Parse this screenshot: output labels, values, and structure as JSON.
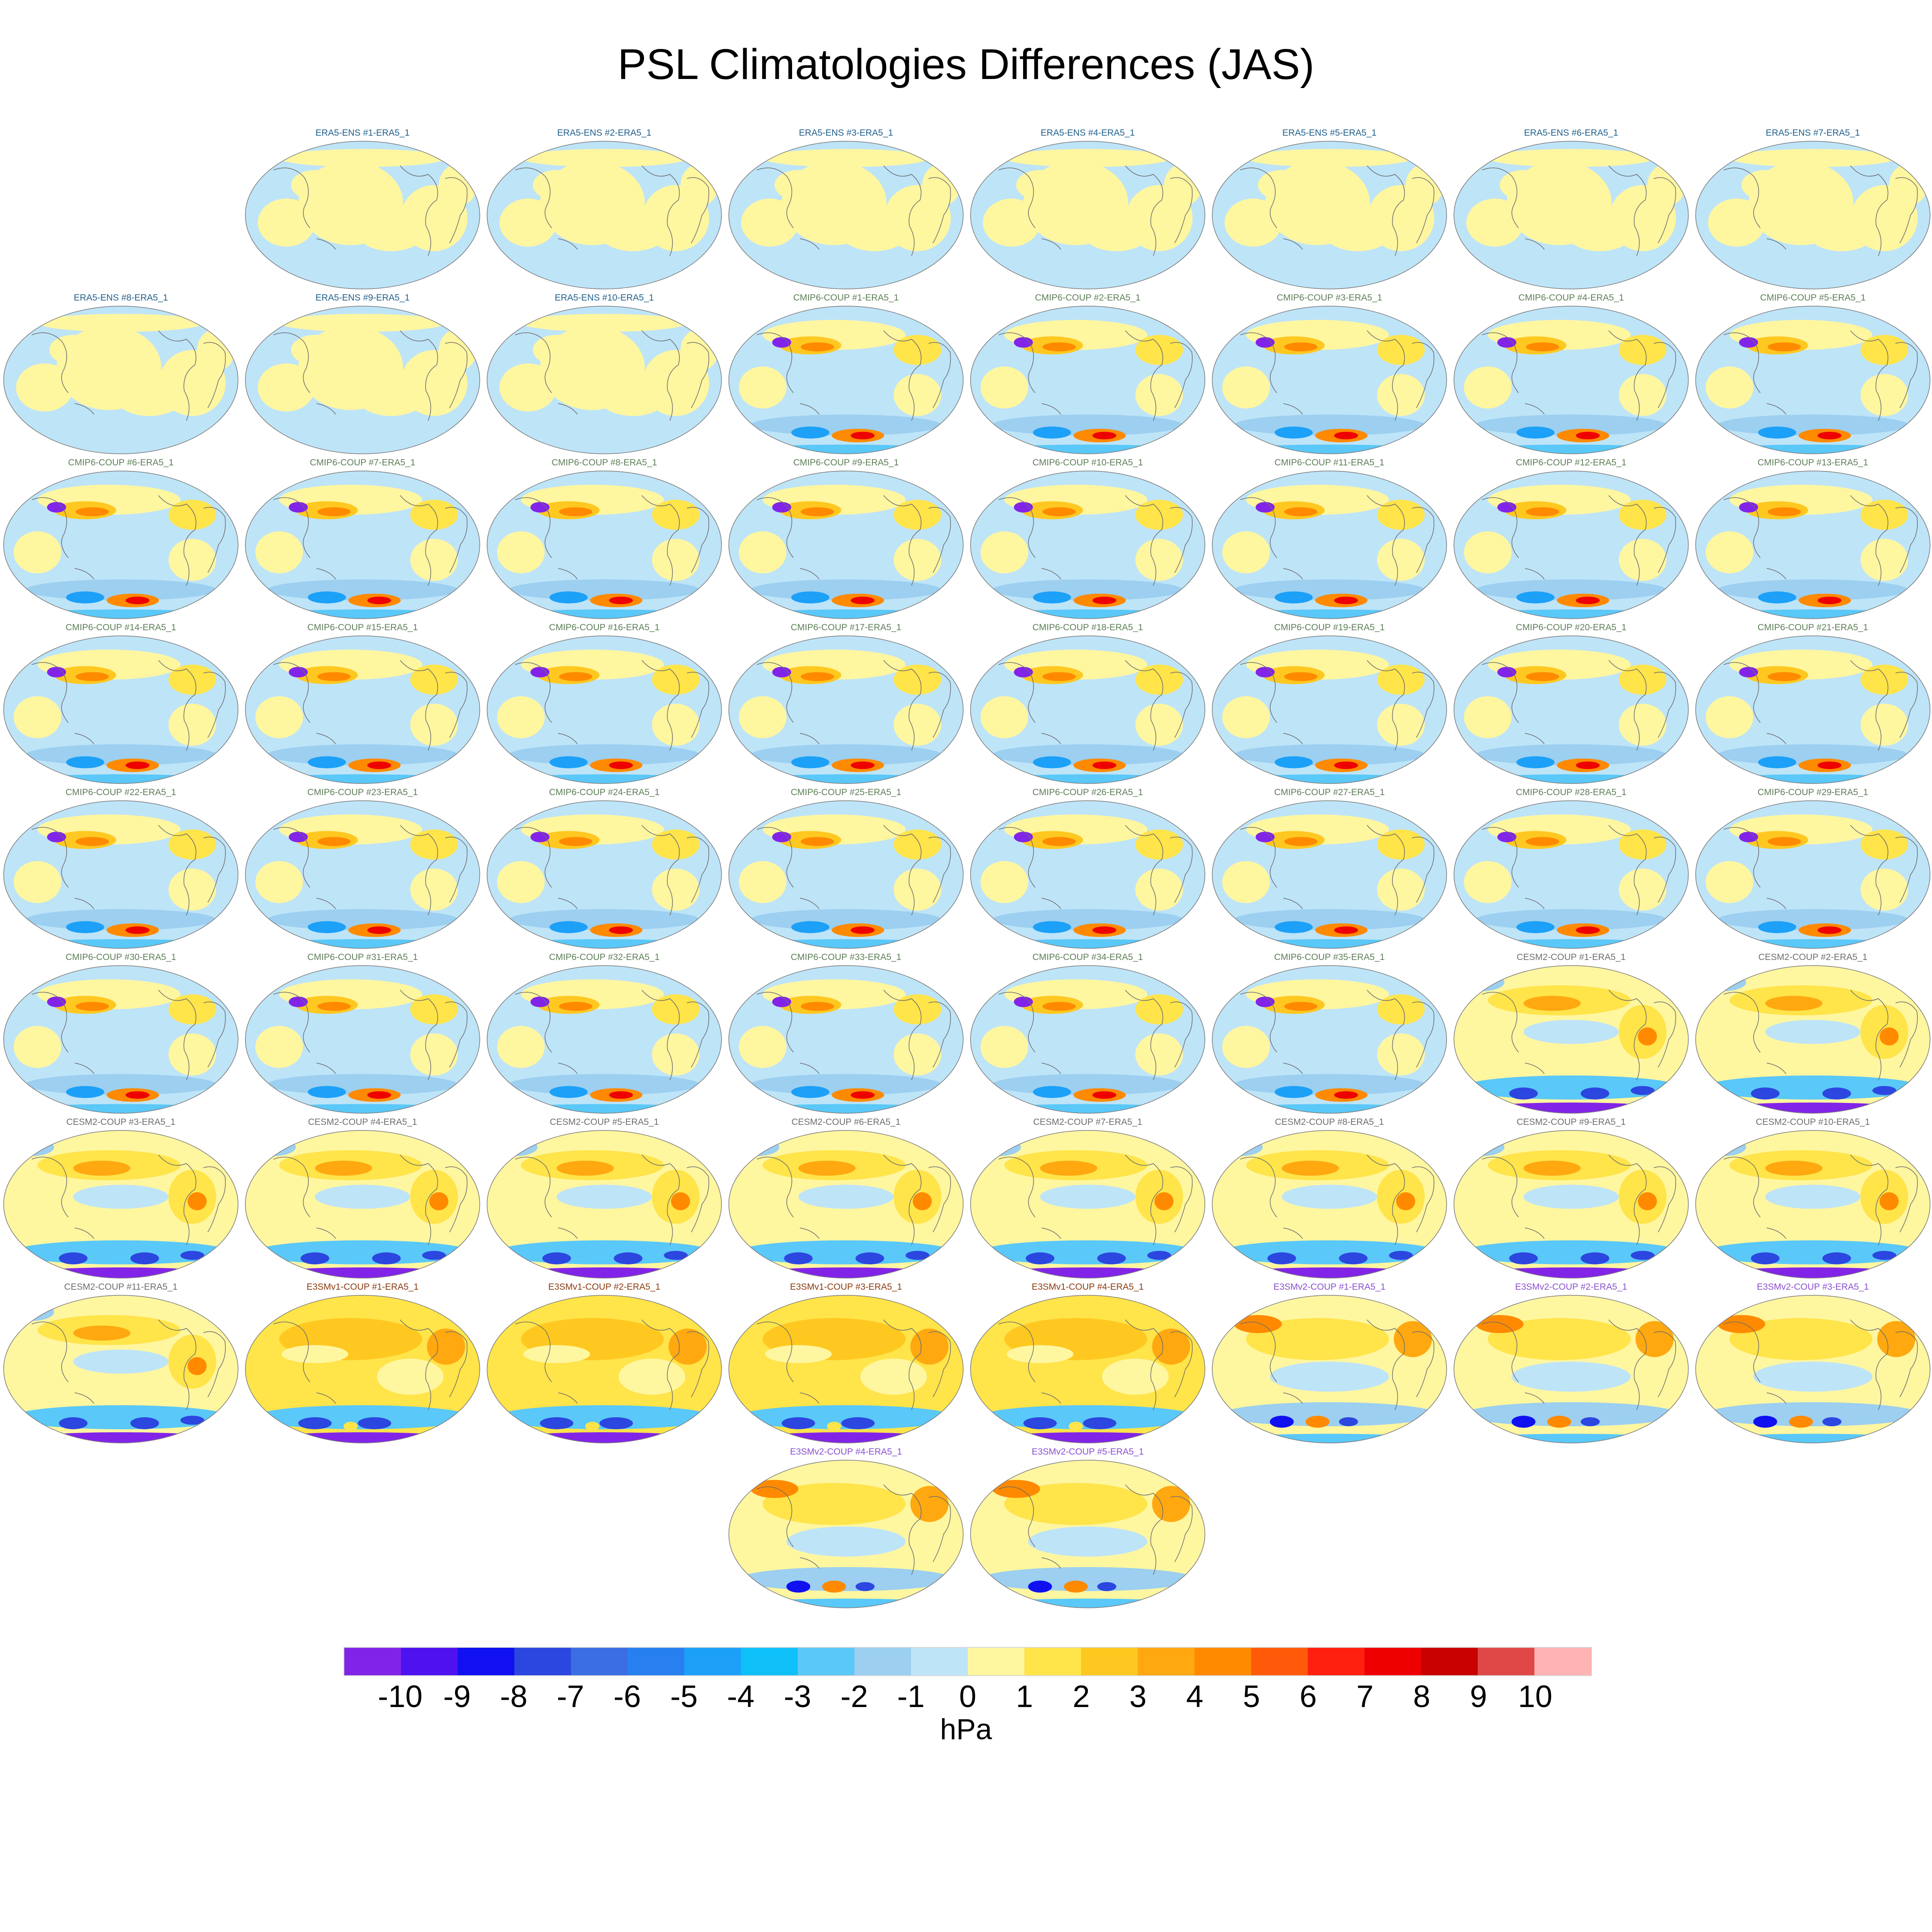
{
  "title": "PSL Climatologies Differences (JAS)",
  "panels": [
    {
      "label": "ERA5-ENS   #1-ERA5_1",
      "group": "ERA5-ENS"
    },
    {
      "label": "ERA5-ENS   #2-ERA5_1",
      "group": "ERA5-ENS"
    },
    {
      "label": "ERA5-ENS   #3-ERA5_1",
      "group": "ERA5-ENS"
    },
    {
      "label": "ERA5-ENS   #4-ERA5_1",
      "group": "ERA5-ENS"
    },
    {
      "label": "ERA5-ENS   #5-ERA5_1",
      "group": "ERA5-ENS"
    },
    {
      "label": "ERA5-ENS   #6-ERA5_1",
      "group": "ERA5-ENS"
    },
    {
      "label": "ERA5-ENS   #7-ERA5_1",
      "group": "ERA5-ENS"
    },
    {
      "label": "ERA5-ENS   #8-ERA5_1",
      "group": "ERA5-ENS"
    },
    {
      "label": "ERA5-ENS   #9-ERA5_1",
      "group": "ERA5-ENS"
    },
    {
      "label": "ERA5-ENS   #10-ERA5_1",
      "group": "ERA5-ENS"
    },
    {
      "label": "CMIP6-COUP  #1-ERA5_1",
      "group": "CMIP6-COUP"
    },
    {
      "label": "CMIP6-COUP  #2-ERA5_1",
      "group": "CMIP6-COUP"
    },
    {
      "label": "CMIP6-COUP  #3-ERA5_1",
      "group": "CMIP6-COUP"
    },
    {
      "label": "CMIP6-COUP  #4-ERA5_1",
      "group": "CMIP6-COUP"
    },
    {
      "label": "CMIP6-COUP  #5-ERA5_1",
      "group": "CMIP6-COUP"
    },
    {
      "label": "CMIP6-COUP  #6-ERA5_1",
      "group": "CMIP6-COUP"
    },
    {
      "label": "CMIP6-COUP  #7-ERA5_1",
      "group": "CMIP6-COUP"
    },
    {
      "label": "CMIP6-COUP  #8-ERA5_1",
      "group": "CMIP6-COUP"
    },
    {
      "label": "CMIP6-COUP  #9-ERA5_1",
      "group": "CMIP6-COUP"
    },
    {
      "label": "CMIP6-COUP  #10-ERA5_1",
      "group": "CMIP6-COUP"
    },
    {
      "label": "CMIP6-COUP  #11-ERA5_1",
      "group": "CMIP6-COUP"
    },
    {
      "label": "CMIP6-COUP  #12-ERA5_1",
      "group": "CMIP6-COUP"
    },
    {
      "label": "CMIP6-COUP  #13-ERA5_1",
      "group": "CMIP6-COUP"
    },
    {
      "label": "CMIP6-COUP  #14-ERA5_1",
      "group": "CMIP6-COUP"
    },
    {
      "label": "CMIP6-COUP  #15-ERA5_1",
      "group": "CMIP6-COUP"
    },
    {
      "label": "CMIP6-COUP  #16-ERA5_1",
      "group": "CMIP6-COUP"
    },
    {
      "label": "CMIP6-COUP  #17-ERA5_1",
      "group": "CMIP6-COUP"
    },
    {
      "label": "CMIP6-COUP  #18-ERA5_1",
      "group": "CMIP6-COUP"
    },
    {
      "label": "CMIP6-COUP  #19-ERA5_1",
      "group": "CMIP6-COUP"
    },
    {
      "label": "CMIP6-COUP  #20-ERA5_1",
      "group": "CMIP6-COUP"
    },
    {
      "label": "CMIP6-COUP  #21-ERA5_1",
      "group": "CMIP6-COUP"
    },
    {
      "label": "CMIP6-COUP  #22-ERA5_1",
      "group": "CMIP6-COUP"
    },
    {
      "label": "CMIP6-COUP  #23-ERA5_1",
      "group": "CMIP6-COUP"
    },
    {
      "label": "CMIP6-COUP  #24-ERA5_1",
      "group": "CMIP6-COUP"
    },
    {
      "label": "CMIP6-COUP  #25-ERA5_1",
      "group": "CMIP6-COUP"
    },
    {
      "label": "CMIP6-COUP  #26-ERA5_1",
      "group": "CMIP6-COUP"
    },
    {
      "label": "CMIP6-COUP  #27-ERA5_1",
      "group": "CMIP6-COUP"
    },
    {
      "label": "CMIP6-COUP  #28-ERA5_1",
      "group": "CMIP6-COUP"
    },
    {
      "label": "CMIP6-COUP  #29-ERA5_1",
      "group": "CMIP6-COUP"
    },
    {
      "label": "CMIP6-COUP  #30-ERA5_1",
      "group": "CMIP6-COUP"
    },
    {
      "label": "CMIP6-COUP  #31-ERA5_1",
      "group": "CMIP6-COUP"
    },
    {
      "label": "CMIP6-COUP  #32-ERA5_1",
      "group": "CMIP6-COUP"
    },
    {
      "label": "CMIP6-COUP  #33-ERA5_1",
      "group": "CMIP6-COUP"
    },
    {
      "label": "CMIP6-COUP  #34-ERA5_1",
      "group": "CMIP6-COUP"
    },
    {
      "label": "CMIP6-COUP  #35-ERA5_1",
      "group": "CMIP6-COUP"
    },
    {
      "label": "CESM2-COUP  #1-ERA5_1",
      "group": "CESM2-COUP"
    },
    {
      "label": "CESM2-COUP  #2-ERA5_1",
      "group": "CESM2-COUP"
    },
    {
      "label": "CESM2-COUP  #3-ERA5_1",
      "group": "CESM2-COUP"
    },
    {
      "label": "CESM2-COUP  #4-ERA5_1",
      "group": "CESM2-COUP"
    },
    {
      "label": "CESM2-COUP  #5-ERA5_1",
      "group": "CESM2-COUP"
    },
    {
      "label": "CESM2-COUP  #6-ERA5_1",
      "group": "CESM2-COUP"
    },
    {
      "label": "CESM2-COUP  #7-ERA5_1",
      "group": "CESM2-COUP"
    },
    {
      "label": "CESM2-COUP  #8-ERA5_1",
      "group": "CESM2-COUP"
    },
    {
      "label": "CESM2-COUP  #9-ERA5_1",
      "group": "CESM2-COUP"
    },
    {
      "label": "CESM2-COUP  #10-ERA5_1",
      "group": "CESM2-COUP"
    },
    {
      "label": "CESM2-COUP  #11-ERA5_1",
      "group": "CESM2-COUP"
    },
    {
      "label": "E3SMv1-COUP  #1-ERA5_1",
      "group": "E3SMv1-COUP"
    },
    {
      "label": "E3SMv1-COUP  #2-ERA5_1",
      "group": "E3SMv1-COUP"
    },
    {
      "label": "E3SMv1-COUP  #3-ERA5_1",
      "group": "E3SMv1-COUP"
    },
    {
      "label": "E3SMv1-COUP  #4-ERA5_1",
      "group": "E3SMv1-COUP"
    },
    {
      "label": "E3SMv2-COUP  #1-ERA5_1",
      "group": "E3SMv2-COUP"
    },
    {
      "label": "E3SMv2-COUP  #2-ERA5_1",
      "group": "E3SMv2-COUP"
    },
    {
      "label": "E3SMv2-COUP  #3-ERA5_1",
      "group": "E3SMv2-COUP"
    },
    {
      "label": "E3SMv2-COUP  #4-ERA5_1",
      "group": "E3SMv2-COUP"
    },
    {
      "label": "E3SMv2-COUP  #5-ERA5_1",
      "group": "E3SMv2-COUP"
    }
  ],
  "group_title_colors": {
    "ERA5-ENS": "#1f5f8b",
    "CMIP6-COUP": "#5e7f58",
    "CESM2-COUP": "#6e6e6e",
    "E3SMv1-COUP": "#8b3a0e",
    "E3SMv2-COUP": "#8a4fd0"
  },
  "colorbar": {
    "units": "hPa",
    "tick_labels": [
      "-10",
      "-9",
      "-8",
      "-7",
      "-6",
      "-5",
      "-4",
      "-3",
      "-2",
      "-1",
      "0",
      "1",
      "2",
      "3",
      "4",
      "5",
      "6",
      "7",
      "8",
      "9",
      "10"
    ],
    "colors": [
      "#8224e8",
      "#4e12f0",
      "#1010f0",
      "#2c46e0",
      "#3a6ee2",
      "#2880f0",
      "#1ca0f8",
      "#10c0f8",
      "#5ac8f8",
      "#9ccff0",
      "#bee4f8",
      "#fff6a0",
      "#ffe44a",
      "#ffc820",
      "#ffa810",
      "#ff8a00",
      "#ff5a0a",
      "#ff2010",
      "#ee0000",
      "#c80000",
      "#e04848",
      "#ffb4b4"
    ]
  }
}
